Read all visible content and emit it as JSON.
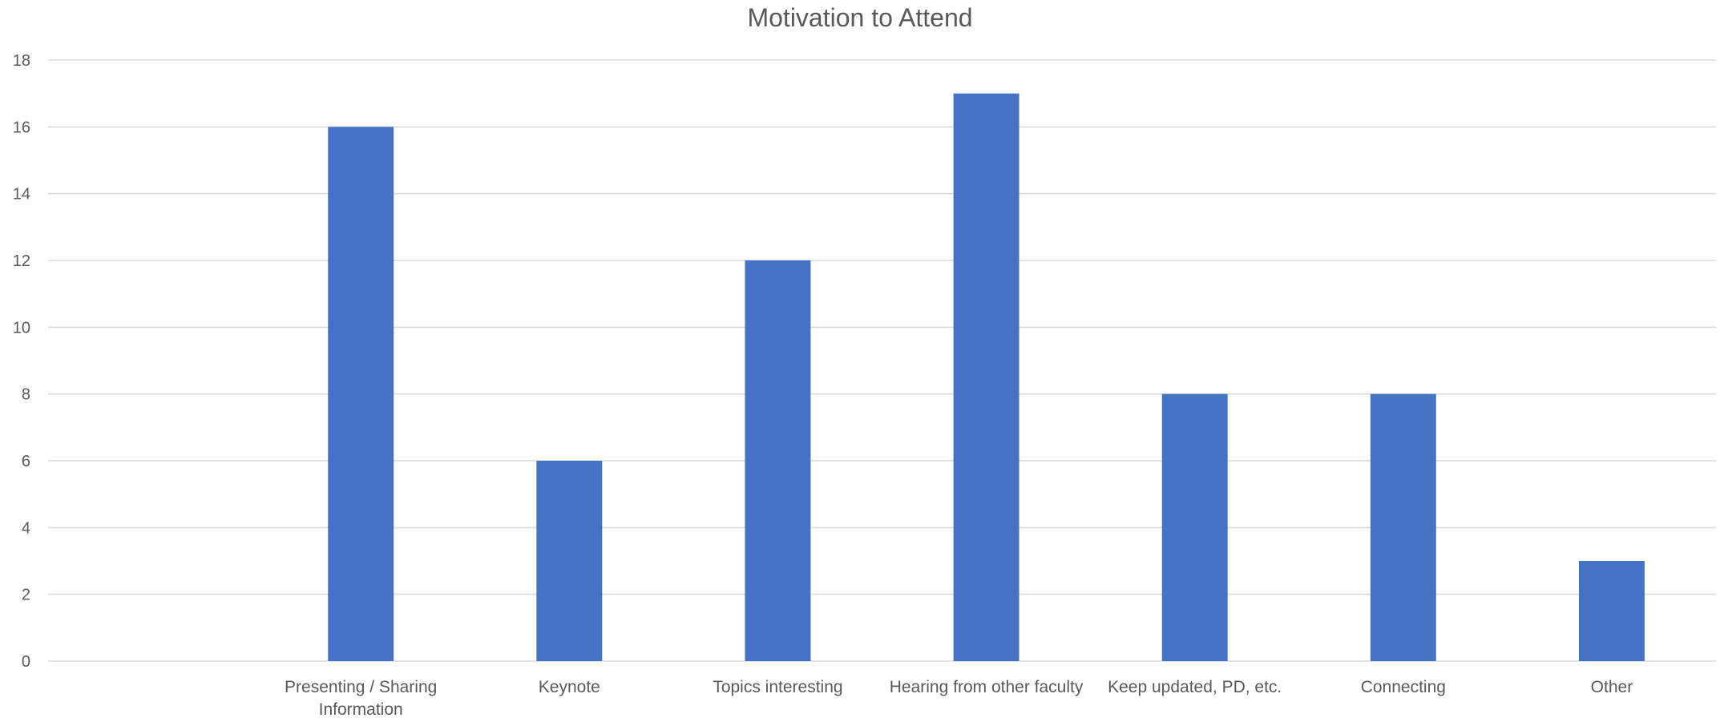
{
  "chart_data": {
    "type": "bar",
    "title": "Motivation to Attend",
    "categories": [
      "",
      [
        "Presenting / Sharing",
        "Information"
      ],
      "Keynote",
      "Topics interesting",
      "Hearing from other faculty",
      "Keep updated, PD, etc.",
      "Connecting",
      "Other"
    ],
    "values": [
      null,
      16,
      6,
      12,
      17,
      8,
      8,
      3
    ],
    "ylim": [
      0,
      18
    ],
    "yticks": [
      0,
      2,
      4,
      6,
      8,
      10,
      12,
      14,
      16,
      18
    ],
    "grid": true,
    "bar_color": "#4472C4",
    "grid_color": "#D9D9D9",
    "text_color": "#595959"
  }
}
